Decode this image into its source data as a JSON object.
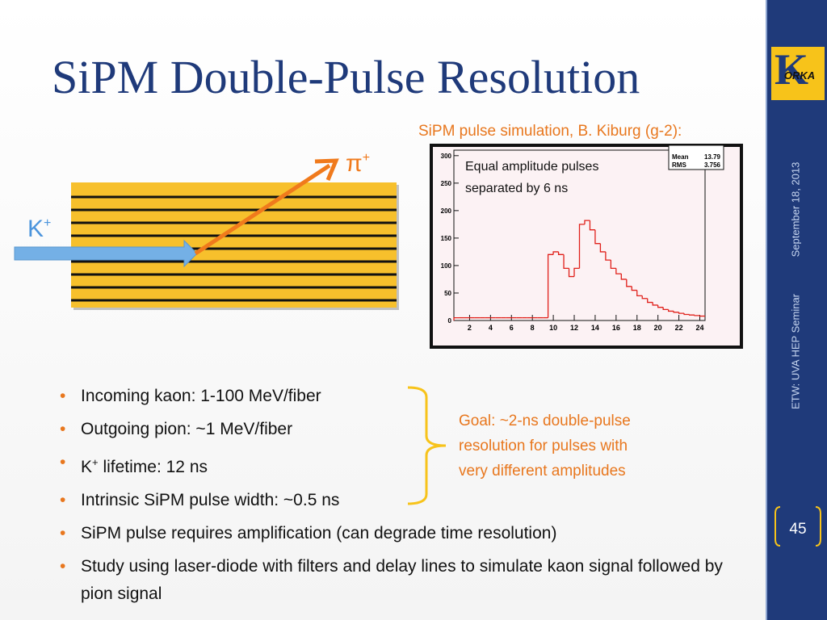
{
  "title": "SiPM Double-Pulse Resolution",
  "figure_caption": "SiPM pulse simulation, B. Kiburg (g-2):",
  "diagram": {
    "pion": {
      "symbol": "π",
      "charge": "+"
    },
    "kaon": {
      "symbol": "K",
      "charge": "+"
    }
  },
  "chart_data": {
    "type": "histogram",
    "annotation": [
      "Equal amplitude pulses",
      "separated by 6 ns"
    ],
    "stats": [
      {
        "label": "Mean",
        "value": "13.79"
      },
      {
        "label": "RMS",
        "value": "3.756"
      }
    ],
    "bins": [
      0.5,
      1,
      1.5,
      2,
      2.5,
      3,
      3.5,
      4,
      4.5,
      5,
      5.5,
      6,
      6.5,
      7,
      7.5,
      8,
      8.5,
      9,
      9.5,
      10,
      10.5,
      11,
      11.5,
      12,
      12.5,
      13,
      13.5,
      14,
      14.5,
      15,
      15.5,
      16,
      16.5,
      17,
      17.5,
      18,
      18.5,
      19,
      19.5,
      20,
      20.5,
      21,
      21.5,
      22,
      22.5,
      23,
      23.5,
      24,
      24.5
    ],
    "values": [
      5,
      5,
      5,
      5,
      5,
      5,
      5,
      5,
      5,
      5,
      5,
      5,
      5,
      5,
      5,
      5,
      5,
      5,
      120,
      125,
      120,
      95,
      80,
      95,
      175,
      182,
      165,
      140,
      125,
      110,
      95,
      85,
      75,
      62,
      55,
      45,
      40,
      33,
      28,
      24,
      20,
      17,
      15,
      13,
      11,
      10,
      9,
      8
    ],
    "color": "#e0201a",
    "xlim": [
      0.5,
      24.5
    ],
    "ylim": [
      0,
      310
    ],
    "xticks": [
      2,
      4,
      6,
      8,
      10,
      12,
      14,
      16,
      18,
      20,
      22,
      24
    ],
    "yticks": [
      0,
      50,
      100,
      150,
      200,
      250,
      300
    ]
  },
  "bullets": [
    {
      "text": "Incoming kaon: 1-100 MeV/fiber"
    },
    {
      "text": "Outgoing pion: ~1 MeV/fiber"
    },
    {
      "pre": "K",
      "sup": "+",
      "post": " lifetime: 12 ns"
    },
    {
      "text": "Intrinsic SiPM pulse width: ~0.5 ns"
    },
    {
      "text": "SiPM pulse requires amplification (can degrade time resolution)"
    },
    {
      "text": "Study using laser-diode with filters and delay lines to simulate kaon signal followed by pion signal"
    }
  ],
  "goal": [
    "Goal: ~2-ns double-pulse",
    "resolution for pulses with",
    "very different amplitudes"
  ],
  "sidebar": {
    "logo_letter": "K",
    "logo_text": "ORKA",
    "date": "September 18, 2013",
    "event": "ETW: UVA HEP Seminar",
    "page": "45"
  }
}
